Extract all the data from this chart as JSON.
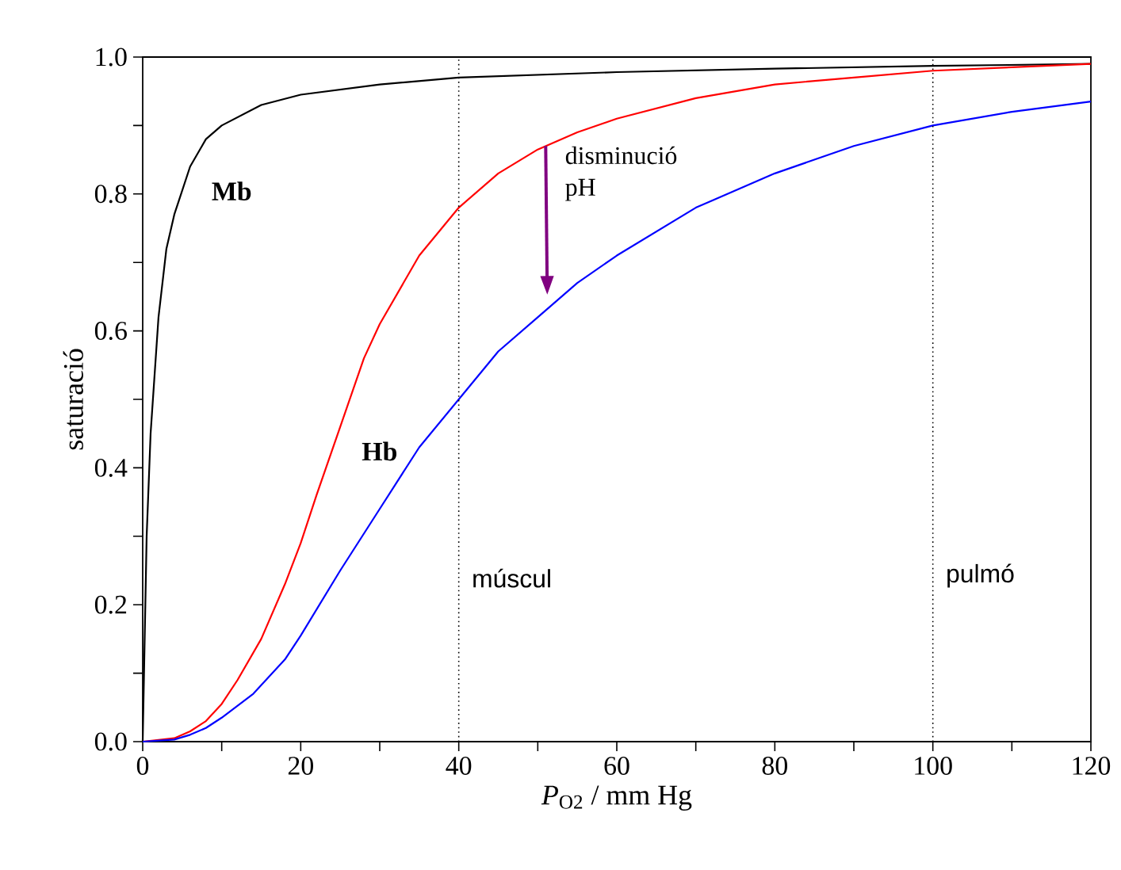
{
  "chart_data": {
    "type": "line",
    "xlabel": "*P*$_{O2}$ / mm Hg",
    "ylabel": "saturació",
    "xlim": [
      0,
      120
    ],
    "ylim": [
      0,
      1
    ],
    "xticks": [
      0,
      {
        "value": 10,
        "label": null
      },
      20,
      {
        "value": 30,
        "label": null
      },
      40,
      {
        "value": 50,
        "label": null
      },
      60,
      {
        "value": 70,
        "label": null
      },
      80,
      {
        "value": 90,
        "label": null
      },
      100,
      {
        "value": 110,
        "label": null
      },
      120
    ],
    "yticks": [
      {
        "value": 0,
        "label": "0.0"
      },
      {
        "value": 0.1,
        "label": null
      },
      0.2,
      {
        "value": 0.3,
        "label": null
      },
      0.4,
      {
        "value": 0.5,
        "label": null
      },
      0.6,
      {
        "value": 0.7,
        "label": null
      },
      0.8,
      {
        "value": 0.9,
        "label": null
      },
      {
        "value": 1,
        "label": "1.0"
      }
    ],
    "grid": false,
    "legend": false,
    "marker": "none",
    "line_style": "solid",
    "series": [
      {
        "name": "**Mb**",
        "color": "#000000",
        "x": [
          0,
          0.5,
          1,
          2,
          3,
          4,
          6,
          8,
          10,
          15,
          20,
          30,
          40,
          60,
          80,
          100,
          120
        ],
        "values": [
          0,
          0.3,
          0.45,
          0.62,
          0.72,
          0.77,
          0.84,
          0.88,
          0.9,
          0.93,
          0.945,
          0.96,
          0.97,
          0.978,
          0.983,
          0.987,
          0.99
        ]
      },
      {
        "name": "**Hb**",
        "color": "#ff0000",
        "x": [
          0,
          4,
          6,
          8,
          10,
          12,
          15,
          18,
          20,
          22,
          25,
          28,
          30,
          35,
          40,
          45,
          50,
          55,
          60,
          70,
          80,
          90,
          100,
          110,
          120
        ],
        "values": [
          0,
          0.005,
          0.015,
          0.03,
          0.055,
          0.09,
          0.15,
          0.23,
          0.29,
          0.36,
          0.46,
          0.56,
          0.61,
          0.71,
          0.78,
          0.83,
          0.865,
          0.89,
          0.91,
          0.94,
          0.96,
          0.97,
          0.98,
          0.985,
          0.99
        ]
      },
      {
        "color": "#0000ff",
        "x": [
          0,
          4,
          6,
          8,
          10,
          14,
          18,
          20,
          25,
          30,
          35,
          40,
          45,
          50,
          55,
          60,
          70,
          80,
          90,
          100,
          110,
          120
        ],
        "values": [
          0,
          0.003,
          0.01,
          0.02,
          0.035,
          0.07,
          0.12,
          0.155,
          0.25,
          0.34,
          0.43,
          0.5,
          0.57,
          0.62,
          0.67,
          0.71,
          0.78,
          0.83,
          0.87,
          0.9,
          0.92,
          0.935
        ]
      }
    ],
    "ref_lines": [
      {
        "axis": "x",
        "value": 40,
        "label": "múscul",
        "line_style": "dotted"
      },
      {
        "axis": "x",
        "value": 100,
        "label": "pulmó",
        "line_style": "dotted"
      }
    ],
    "annotations": [
      {
        "text": "disminució pH",
        "x": 51,
        "y": 0.87
      }
    ]
  }
}
